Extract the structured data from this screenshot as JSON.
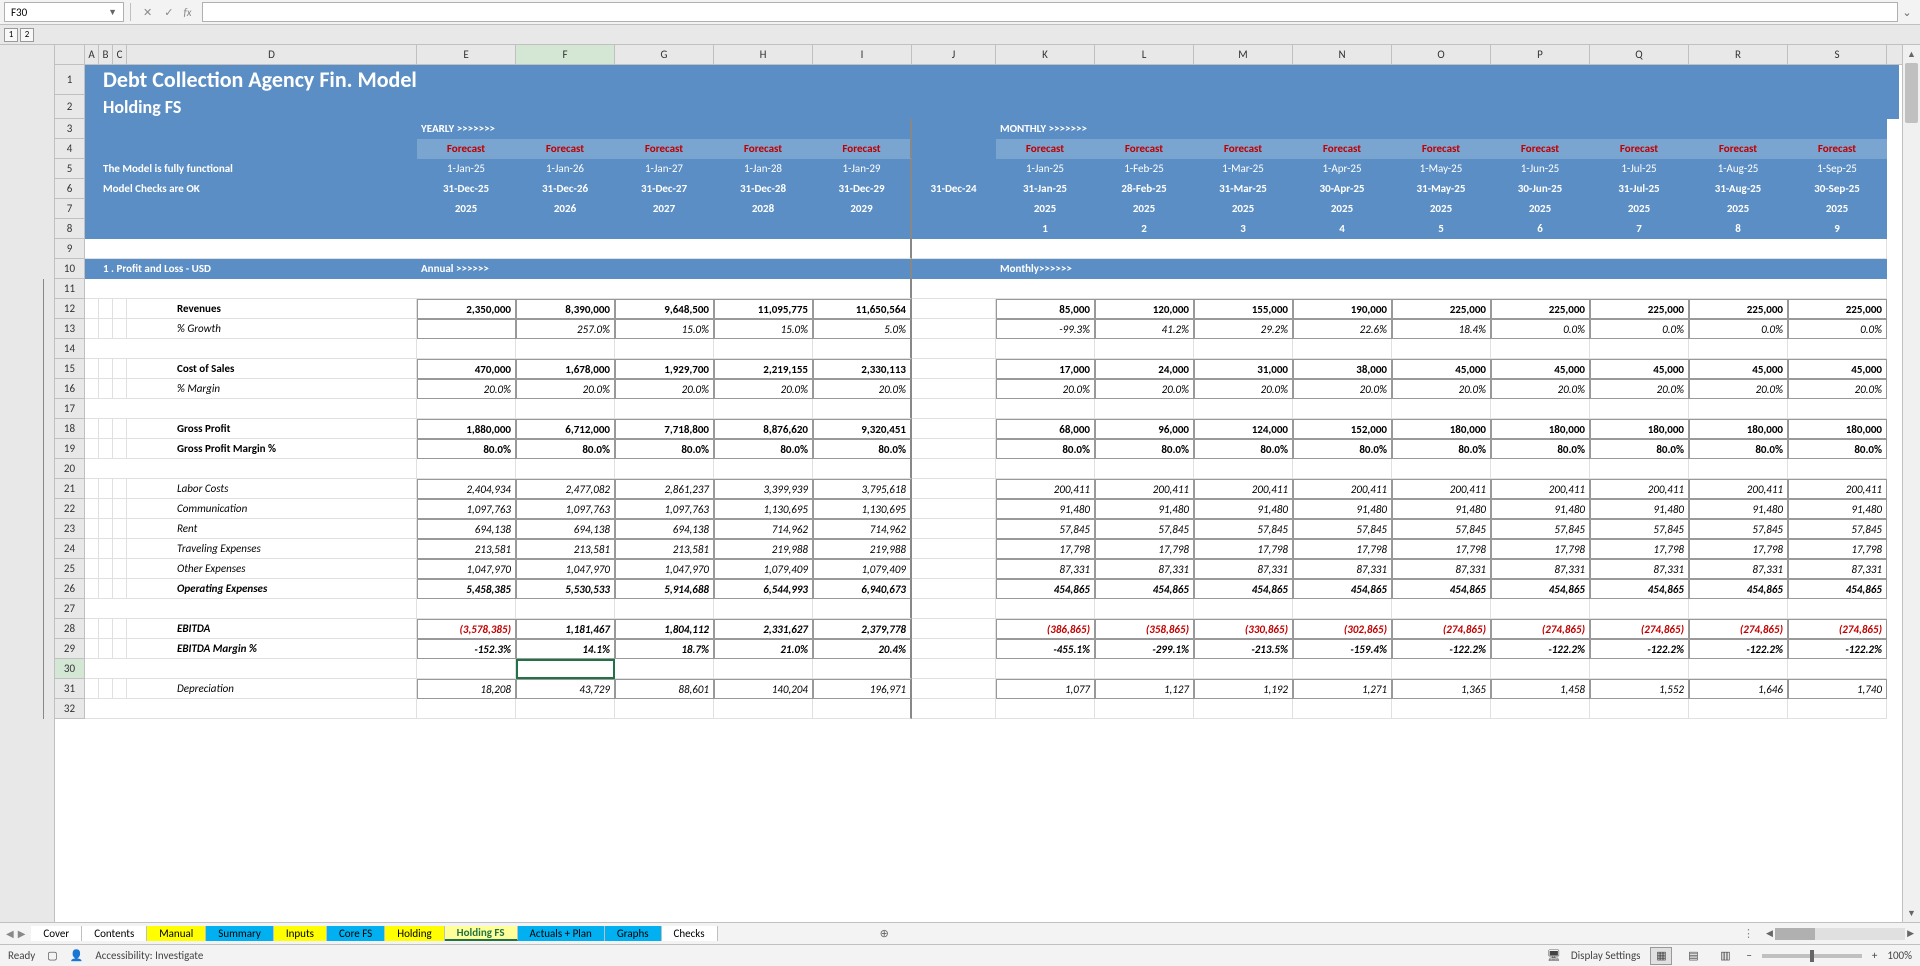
{
  "nameBox": "F30",
  "title": "Debt Collection Agency Fin. Model",
  "subtitle": "Holding FS",
  "statusModel": "The Model is fully functional",
  "statusChecks": "Model Checks are OK",
  "yearlyLabel": "YEARLY >>>>>>>",
  "monthlyLabel": "MONTHLY >>>>>>>",
  "annualLabel": "Annual >>>>>>",
  "monthlyLabel2": "Monthly>>>>>>",
  "forecastLabel": "Forecast",
  "sectionTitle": "1 . Profit and Loss - USD",
  "cols": [
    "A",
    "B",
    "C",
    "D",
    "E",
    "F",
    "G",
    "H",
    "I",
    "J",
    "K",
    "L",
    "M",
    "N",
    "O",
    "P",
    "Q",
    "R",
    "S"
  ],
  "rowNums": [
    "1",
    "2",
    "3",
    "4",
    "5",
    "6",
    "7",
    "8",
    "9",
    "10",
    "11",
    "12",
    "13",
    "14",
    "15",
    "16",
    "17",
    "18",
    "19",
    "20",
    "21",
    "22",
    "23",
    "24",
    "25",
    "26",
    "27",
    "28",
    "29",
    "30",
    "31",
    "32"
  ],
  "yearly": {
    "start": [
      "1-Jan-25",
      "1-Jan-26",
      "1-Jan-27",
      "1-Jan-28",
      "1-Jan-29"
    ],
    "end": [
      "31-Dec-25",
      "31-Dec-26",
      "31-Dec-27",
      "31-Dec-28",
      "31-Dec-29"
    ],
    "year": [
      "2025",
      "2026",
      "2027",
      "2028",
      "2029"
    ]
  },
  "monthly": {
    "j_end": "31-Dec-24",
    "start": [
      "1-Jan-25",
      "1-Feb-25",
      "1-Mar-25",
      "1-Apr-25",
      "1-May-25",
      "1-Jun-25",
      "1-Jul-25",
      "1-Aug-25",
      "1-Sep-25"
    ],
    "end": [
      "31-Jan-25",
      "28-Feb-25",
      "31-Mar-25",
      "30-Apr-25",
      "31-May-25",
      "30-Jun-25",
      "31-Jul-25",
      "31-Aug-25",
      "30-Sep-25"
    ],
    "year": [
      "2025",
      "2025",
      "2025",
      "2025",
      "2025",
      "2025",
      "2025",
      "2025",
      "2025"
    ],
    "num": [
      "1",
      "2",
      "3",
      "4",
      "5",
      "6",
      "7",
      "8",
      "9"
    ]
  },
  "labels": {
    "revenues": "Revenues",
    "growth": "% Growth",
    "cos": "Cost of Sales",
    "margin": "% Margin",
    "gp": "Gross Profit",
    "gpm": "Gross Profit Margin %",
    "labor": "Labor Costs",
    "comm": "Communication",
    "rent": "Rent",
    "travel": "Traveling Expenses",
    "other": "Other Expenses",
    "opex": "Operating Expenses",
    "ebitda": "EBITDA",
    "ebitdam": "EBITDA Margin %",
    "depr": "Depreciation"
  },
  "dataY": {
    "revenues": [
      "2,350,000",
      "8,390,000",
      "9,648,500",
      "11,095,775",
      "11,650,564"
    ],
    "growth": [
      "",
      "257.0%",
      "15.0%",
      "15.0%",
      "5.0%"
    ],
    "cos": [
      "470,000",
      "1,678,000",
      "1,929,700",
      "2,219,155",
      "2,330,113"
    ],
    "margin": [
      "20.0%",
      "20.0%",
      "20.0%",
      "20.0%",
      "20.0%"
    ],
    "gp": [
      "1,880,000",
      "6,712,000",
      "7,718,800",
      "8,876,620",
      "9,320,451"
    ],
    "gpm": [
      "80.0%",
      "80.0%",
      "80.0%",
      "80.0%",
      "80.0%"
    ],
    "labor": [
      "2,404,934",
      "2,477,082",
      "2,861,237",
      "3,399,939",
      "3,795,618"
    ],
    "comm": [
      "1,097,763",
      "1,097,763",
      "1,097,763",
      "1,130,695",
      "1,130,695"
    ],
    "rent": [
      "694,138",
      "694,138",
      "694,138",
      "714,962",
      "714,962"
    ],
    "travel": [
      "213,581",
      "213,581",
      "213,581",
      "219,988",
      "219,988"
    ],
    "other": [
      "1,047,970",
      "1,047,970",
      "1,047,970",
      "1,079,409",
      "1,079,409"
    ],
    "opex": [
      "5,458,385",
      "5,530,533",
      "5,914,688",
      "6,544,993",
      "6,940,673"
    ],
    "ebitda": [
      "(3,578,385)",
      "1,181,467",
      "1,804,112",
      "2,331,627",
      "2,379,778"
    ],
    "ebitdam": [
      "-152.3%",
      "14.1%",
      "18.7%",
      "21.0%",
      "20.4%"
    ],
    "depr": [
      "18,208",
      "43,729",
      "88,601",
      "140,204",
      "196,971"
    ]
  },
  "dataM": {
    "revenues": [
      "85,000",
      "120,000",
      "155,000",
      "190,000",
      "225,000",
      "225,000",
      "225,000",
      "225,000",
      "225,000"
    ],
    "growth": [
      "-99.3%",
      "41.2%",
      "29.2%",
      "22.6%",
      "18.4%",
      "0.0%",
      "0.0%",
      "0.0%",
      "0.0%"
    ],
    "cos": [
      "17,000",
      "24,000",
      "31,000",
      "38,000",
      "45,000",
      "45,000",
      "45,000",
      "45,000",
      "45,000"
    ],
    "margin": [
      "20.0%",
      "20.0%",
      "20.0%",
      "20.0%",
      "20.0%",
      "20.0%",
      "20.0%",
      "20.0%",
      "20.0%"
    ],
    "gp": [
      "68,000",
      "96,000",
      "124,000",
      "152,000",
      "180,000",
      "180,000",
      "180,000",
      "180,000",
      "180,000"
    ],
    "gpm": [
      "80.0%",
      "80.0%",
      "80.0%",
      "80.0%",
      "80.0%",
      "80.0%",
      "80.0%",
      "80.0%",
      "80.0%"
    ],
    "labor": [
      "200,411",
      "200,411",
      "200,411",
      "200,411",
      "200,411",
      "200,411",
      "200,411",
      "200,411",
      "200,411"
    ],
    "comm": [
      "91,480",
      "91,480",
      "91,480",
      "91,480",
      "91,480",
      "91,480",
      "91,480",
      "91,480",
      "91,480"
    ],
    "rent": [
      "57,845",
      "57,845",
      "57,845",
      "57,845",
      "57,845",
      "57,845",
      "57,845",
      "57,845",
      "57,845"
    ],
    "travel": [
      "17,798",
      "17,798",
      "17,798",
      "17,798",
      "17,798",
      "17,798",
      "17,798",
      "17,798",
      "17,798"
    ],
    "other": [
      "87,331",
      "87,331",
      "87,331",
      "87,331",
      "87,331",
      "87,331",
      "87,331",
      "87,331",
      "87,331"
    ],
    "opex": [
      "454,865",
      "454,865",
      "454,865",
      "454,865",
      "454,865",
      "454,865",
      "454,865",
      "454,865",
      "454,865"
    ],
    "ebitda": [
      "(386,865)",
      "(358,865)",
      "(330,865)",
      "(302,865)",
      "(274,865)",
      "(274,865)",
      "(274,865)",
      "(274,865)",
      "(274,865)"
    ],
    "ebitdam": [
      "-455.1%",
      "-299.1%",
      "-213.5%",
      "-159.4%",
      "-122.2%",
      "-122.2%",
      "-122.2%",
      "-122.2%",
      "-122.2%"
    ],
    "depr": [
      "1,077",
      "1,127",
      "1,192",
      "1,271",
      "1,365",
      "1,458",
      "1,552",
      "1,646",
      "1,740"
    ]
  },
  "tabs": [
    {
      "name": "Cover",
      "cls": ""
    },
    {
      "name": "Contents",
      "cls": ""
    },
    {
      "name": "Manual",
      "cls": "yellow"
    },
    {
      "name": "Summary",
      "cls": "cyan"
    },
    {
      "name": "Inputs",
      "cls": "yellow"
    },
    {
      "name": "Core FS",
      "cls": "cyan"
    },
    {
      "name": "Holding",
      "cls": "yellow"
    },
    {
      "name": "Holding FS",
      "cls": "yellow active"
    },
    {
      "name": "Actuals + Plan",
      "cls": "cyan"
    },
    {
      "name": "Graphs",
      "cls": "cyan"
    },
    {
      "name": "Checks",
      "cls": ""
    }
  ],
  "status": {
    "ready": "Ready",
    "accessibility": "Accessibility: Investigate",
    "displaySettings": "Display Settings",
    "zoom": "100%"
  }
}
